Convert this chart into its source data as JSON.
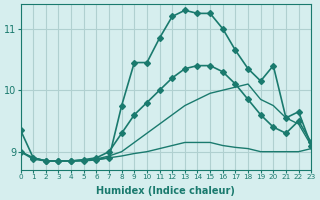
{
  "xlabel": "Humidex (Indice chaleur)",
  "ylabel": "",
  "background_color": "#d6eeee",
  "grid_color": "#b0d0d0",
  "line_color": "#1a7a6e",
  "xlim": [
    0,
    23
  ],
  "ylim": [
    8.7,
    11.4
  ],
  "yticks": [
    9,
    10,
    11
  ],
  "xticks": [
    0,
    1,
    2,
    3,
    4,
    5,
    6,
    7,
    8,
    9,
    10,
    11,
    12,
    13,
    14,
    15,
    16,
    17,
    18,
    19,
    20,
    21,
    22,
    23
  ],
  "lines": [
    {
      "x": [
        0,
        1,
        2,
        3,
        4,
        5,
        6,
        7,
        8,
        9,
        10,
        11,
        12,
        13,
        14,
        15,
        16,
        17,
        18,
        19,
        20,
        21,
        22,
        23
      ],
      "y": [
        9.35,
        8.9,
        8.85,
        8.85,
        8.85,
        8.85,
        8.87,
        8.9,
        9.75,
        10.45,
        10.45,
        10.85,
        11.2,
        11.3,
        11.25,
        11.25,
        11.0,
        10.65,
        10.35,
        10.15,
        10.4,
        9.55,
        9.65,
        9.1
      ],
      "marker": "D",
      "markersize": 3,
      "linewidth": 1.2
    },
    {
      "x": [
        0,
        1,
        2,
        3,
        4,
        5,
        6,
        7,
        8,
        9,
        10,
        11,
        12,
        13,
        14,
        15,
        16,
        17,
        18,
        19,
        20,
        21,
        22,
        23
      ],
      "y": [
        9.0,
        8.9,
        8.85,
        8.85,
        8.85,
        8.86,
        8.88,
        8.93,
        9.0,
        9.15,
        9.3,
        9.45,
        9.6,
        9.75,
        9.85,
        9.95,
        10.0,
        10.05,
        10.1,
        9.85,
        9.75,
        9.55,
        9.45,
        9.1
      ],
      "marker": null,
      "markersize": 0,
      "linewidth": 1.0
    },
    {
      "x": [
        0,
        1,
        2,
        3,
        4,
        5,
        6,
        7,
        8,
        9,
        10,
        11,
        12,
        13,
        14,
        15,
        16,
        17,
        18,
        19,
        20,
        21,
        22,
        23
      ],
      "y": [
        9.0,
        8.9,
        8.85,
        8.85,
        8.85,
        8.86,
        8.87,
        8.9,
        8.93,
        8.97,
        9.0,
        9.05,
        9.1,
        9.15,
        9.15,
        9.15,
        9.1,
        9.07,
        9.05,
        9.0,
        9.0,
        9.0,
        9.0,
        9.05
      ],
      "marker": null,
      "markersize": 0,
      "linewidth": 1.0
    },
    {
      "x": [
        0,
        1,
        2,
        3,
        4,
        5,
        6,
        7,
        8,
        9,
        10,
        11,
        12,
        13,
        14,
        15,
        16,
        17,
        18,
        19,
        20,
        21,
        22,
        23
      ],
      "y": [
        9.0,
        8.88,
        8.85,
        8.85,
        8.85,
        8.87,
        8.9,
        9.0,
        9.3,
        9.6,
        9.8,
        10.0,
        10.2,
        10.35,
        10.4,
        10.4,
        10.3,
        10.1,
        9.85,
        9.6,
        9.4,
        9.3,
        9.5,
        9.15
      ],
      "marker": "D",
      "markersize": 3,
      "linewidth": 1.2
    }
  ]
}
